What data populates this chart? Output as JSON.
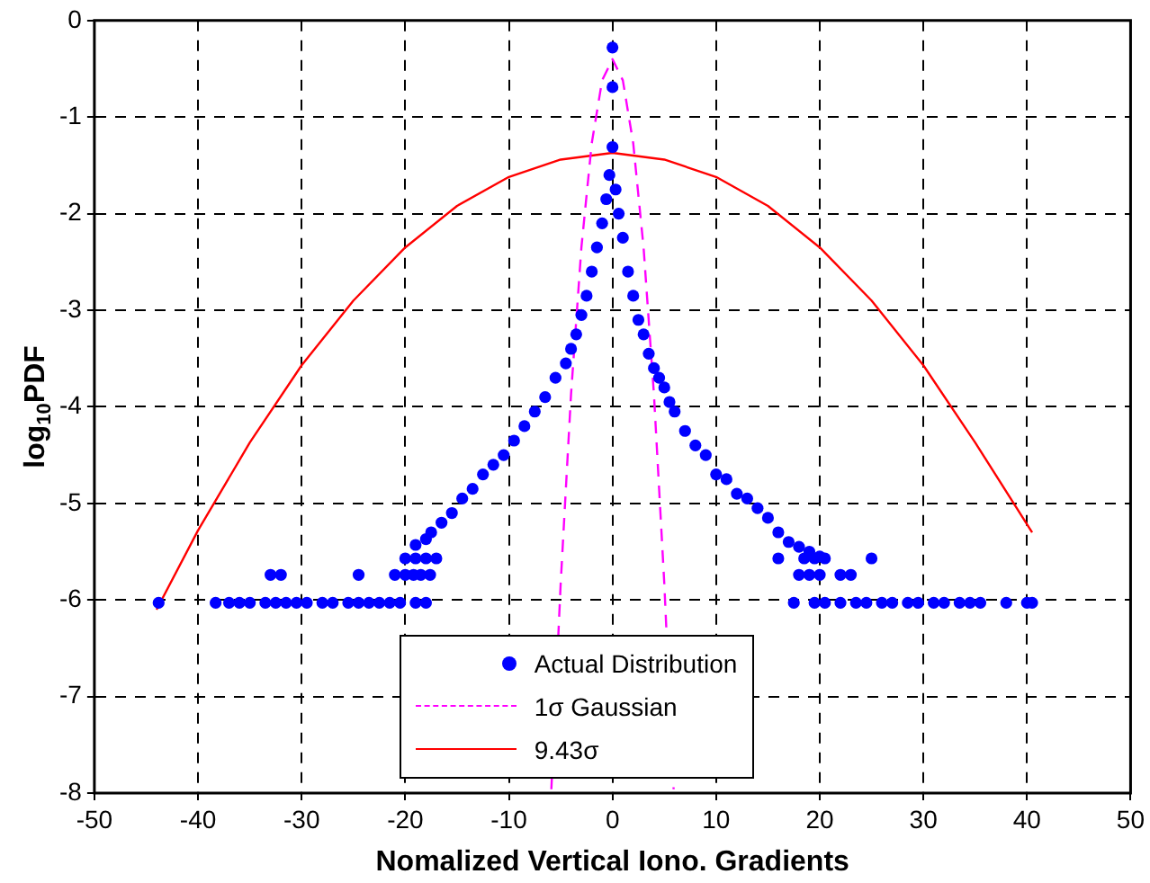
{
  "chart_data": {
    "type": "scatter",
    "xlabel": "Nomalized Vertical Iono. Gradients",
    "ylabel": "log$_{10}$PDF",
    "xlim": [
      -50,
      50
    ],
    "xticks": [
      -50,
      -40,
      -30,
      -20,
      -10,
      0,
      10,
      20,
      30,
      40,
      50
    ],
    "ylim": [
      -8,
      0
    ],
    "yticks": [
      -8,
      -7,
      -6,
      -5,
      -4,
      -3,
      -2,
      -1,
      0
    ],
    "grid": true,
    "legend": "bottom",
    "series": [
      {
        "name": "Actual Distribution",
        "type": "scatter",
        "marker": "circle",
        "color": "#0000ff",
        "x": [
          -43.8,
          -38.3,
          -37,
          -36,
          -35,
          -33.5,
          -32.5,
          -31.5,
          -30.5,
          -29.5,
          -28,
          -27,
          -25.5,
          -24.5,
          -23.5,
          -22.5,
          -21.5,
          -20.5,
          -19,
          -18,
          -33,
          -32,
          -24.5,
          -21,
          -20,
          -19.2,
          -18.5,
          -17.6,
          -20,
          -19,
          -18,
          -17,
          -19,
          -18,
          -17.5,
          -16.5,
          -15.5,
          -14.5,
          -13.5,
          -12.5,
          -11.5,
          -10.5,
          -9.5,
          -8.5,
          -7.5,
          -6.5,
          -5.5,
          -4.5,
          -4,
          -3.5,
          -3,
          -2.5,
          -2,
          -1.5,
          -1,
          -0.6,
          -0.3,
          0,
          0,
          0,
          0.3,
          0.6,
          1,
          1.5,
          2,
          2.5,
          3,
          3.5,
          4,
          4.5,
          5,
          5.5,
          6,
          7,
          8,
          9,
          10,
          11,
          12,
          13,
          14,
          15,
          16,
          17,
          18,
          19,
          20,
          16,
          18.5,
          19.5,
          20.5,
          25,
          18,
          19,
          20,
          22,
          23,
          17.5,
          19.5,
          20.5,
          22,
          23.5,
          24.5,
          26,
          27,
          28.5,
          29.5,
          31,
          32,
          33.5,
          34.5,
          35.5,
          38,
          40,
          40.5
        ],
        "values": [
          -6.03,
          -6.03,
          -6.03,
          -6.03,
          -6.03,
          -6.03,
          -6.03,
          -6.03,
          -6.03,
          -6.03,
          -6.03,
          -6.03,
          -6.03,
          -6.03,
          -6.03,
          -6.03,
          -6.03,
          -6.03,
          -6.03,
          -6.03,
          -5.74,
          -5.74,
          -5.74,
          -5.74,
          -5.74,
          -5.74,
          -5.74,
          -5.74,
          -5.57,
          -5.57,
          -5.57,
          -5.57,
          -5.43,
          -5.37,
          -5.3,
          -5.2,
          -5.1,
          -4.95,
          -4.85,
          -4.7,
          -4.6,
          -4.5,
          -4.35,
          -4.2,
          -4.05,
          -3.9,
          -3.7,
          -3.55,
          -3.4,
          -3.25,
          -3.05,
          -2.85,
          -2.6,
          -2.35,
          -2.1,
          -1.85,
          -1.6,
          -0.28,
          -0.69,
          -1.31,
          -1.75,
          -2.0,
          -2.25,
          -2.6,
          -2.85,
          -3.1,
          -3.25,
          -3.45,
          -3.6,
          -3.7,
          -3.8,
          -3.95,
          -4.05,
          -4.25,
          -4.4,
          -4.5,
          -4.7,
          -4.75,
          -4.9,
          -4.95,
          -5.05,
          -5.15,
          -5.3,
          -5.4,
          -5.45,
          -5.5,
          -5.55,
          -5.57,
          -5.57,
          -5.57,
          -5.57,
          -5.57,
          -5.74,
          -5.74,
          -5.74,
          -5.74,
          -5.74,
          -6.03,
          -6.03,
          -6.03,
          -6.03,
          -6.03,
          -6.03,
          -6.03,
          -6.03,
          -6.03,
          -6.03,
          -6.03,
          -6.03,
          -6.03,
          -6.03,
          -6.03,
          -6.03,
          -6.03,
          -6.03
        ]
      },
      {
        "name": "1σ  Gaussian",
        "type": "line",
        "marker": "none",
        "line_style": "dashed",
        "color": "#ff00ff",
        "x": [
          -5.9,
          -5,
          -4,
          -3,
          -2,
          -1,
          0,
          1,
          2,
          3,
          4,
          5,
          5.9
        ],
        "values": [
          -7.96,
          -5.83,
          -3.87,
          -2.35,
          -1.27,
          -0.62,
          -0.4,
          -0.62,
          -1.27,
          -2.35,
          -3.87,
          -5.83,
          -7.96
        ]
      },
      {
        "name": "9.43σ",
        "type": "line",
        "marker": "none",
        "line_style": "solid",
        "color": "#ff0000",
        "x": [
          -44,
          -40,
          -35,
          -30,
          -25,
          -20,
          -15,
          -10,
          -5,
          0,
          5,
          10,
          15,
          20,
          25,
          30,
          35,
          40.5
        ],
        "values": [
          -6.1,
          -5.28,
          -4.37,
          -3.57,
          -2.9,
          -2.35,
          -1.92,
          -1.62,
          -1.44,
          -1.37,
          -1.44,
          -1.62,
          -1.92,
          -2.35,
          -2.9,
          -3.57,
          -4.37,
          -5.3
        ]
      }
    ]
  }
}
